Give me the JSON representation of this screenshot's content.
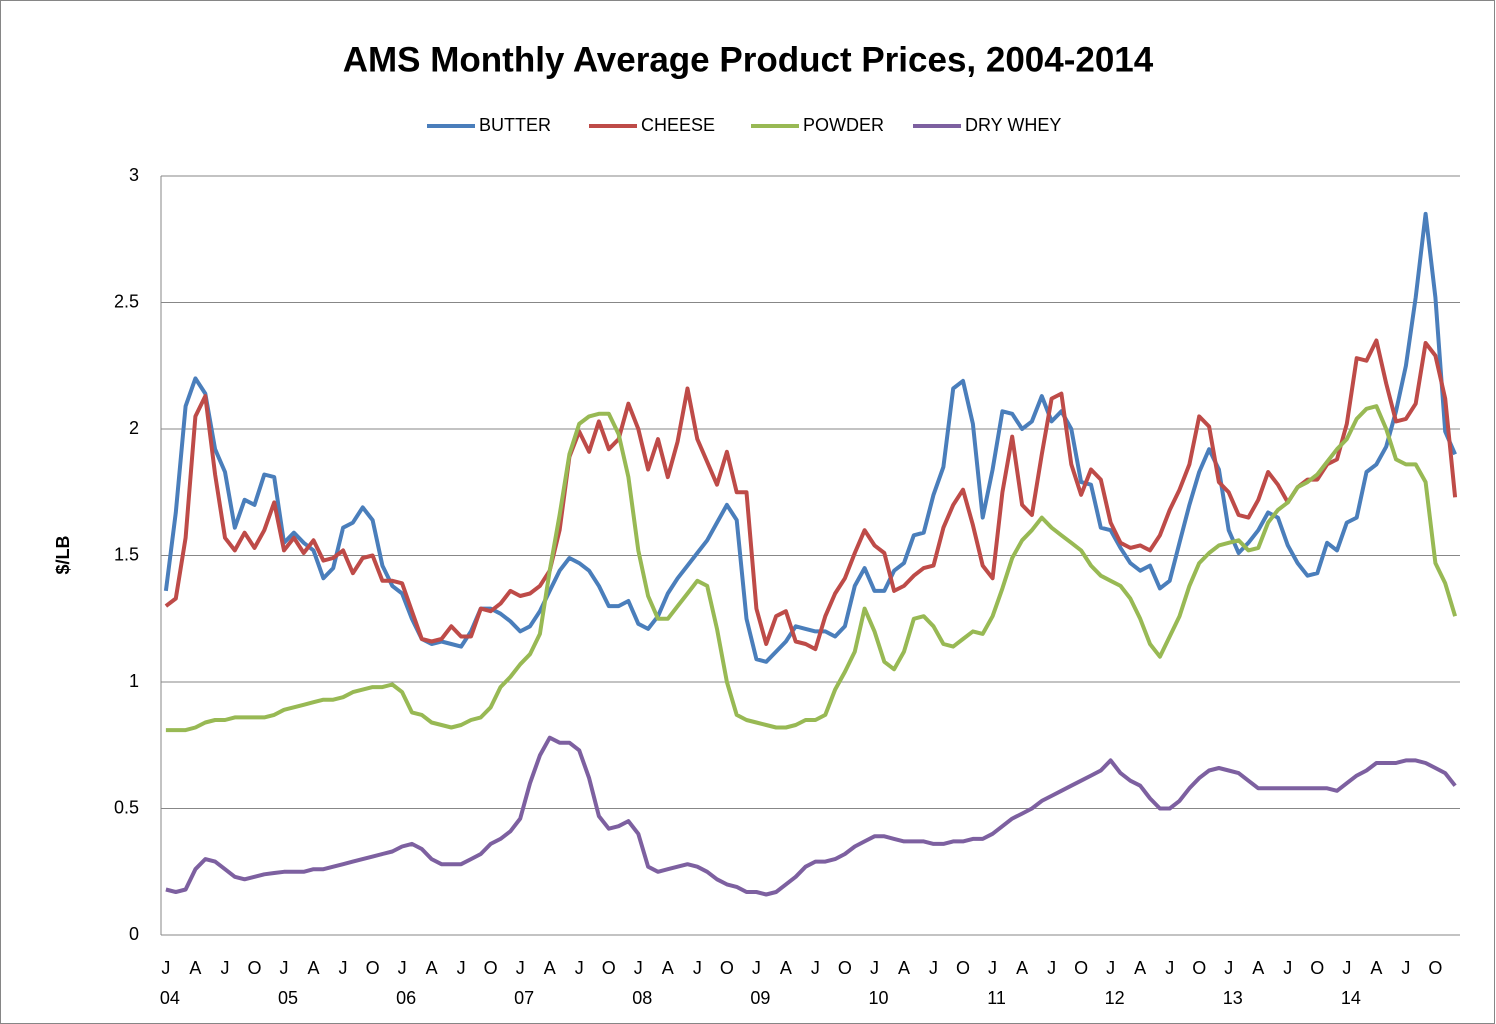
{
  "chart_data": {
    "type": "line",
    "title": "AMS Monthly Average Product Prices, 2004-2014",
    "y_label": "$/LB",
    "categories": [
      "J",
      null,
      null,
      "A",
      null,
      null,
      "J",
      null,
      null,
      "O",
      null,
      null,
      "J",
      null,
      null,
      "A",
      null,
      null,
      "J",
      null,
      null,
      "O",
      null,
      null,
      "J",
      null,
      null,
      "A",
      null,
      null,
      "J",
      null,
      null,
      "O",
      null,
      null,
      "J",
      null,
      null,
      "A",
      null,
      null,
      "J",
      null,
      null,
      "O",
      null,
      null,
      "J",
      null,
      null,
      "A",
      null,
      null,
      "J",
      null,
      null,
      "O",
      null,
      null,
      "J",
      null,
      null,
      "A",
      null,
      null,
      "J",
      null,
      null,
      "O",
      null,
      null,
      "J",
      null,
      null,
      "A",
      null,
      null,
      "J",
      null,
      null,
      "O",
      null,
      null,
      "J",
      null,
      null,
      "A",
      null,
      null,
      "J",
      null,
      null,
      "O",
      null,
      null,
      "J",
      null,
      null,
      "A",
      null,
      null,
      "J",
      null,
      null,
      "O",
      null,
      null,
      "J",
      null,
      null,
      "A",
      null,
      null,
      "J",
      null,
      null,
      "O",
      null,
      null,
      "J",
      null,
      null,
      "A",
      null,
      null,
      "J",
      null,
      null,
      "O",
      null,
      null
    ],
    "year_labels": [
      "04",
      "05",
      "06",
      "07",
      "08",
      "09",
      "10",
      "11",
      "12",
      "13",
      "14"
    ],
    "ylim": [
      0,
      3
    ],
    "yticks": [
      0,
      0.5,
      1,
      1.5,
      2,
      2.5,
      3
    ],
    "grid": true,
    "legend": "top",
    "series": [
      {
        "name": "BUTTER",
        "color": "#4a7ebb",
        "values": [
          1.36,
          1.67,
          2.09,
          2.2,
          2.14,
          1.92,
          1.83,
          1.61,
          1.72,
          1.7,
          1.82,
          1.81,
          1.55,
          1.59,
          1.55,
          1.52,
          1.41,
          1.45,
          1.61,
          1.63,
          1.69,
          1.64,
          1.46,
          1.38,
          1.35,
          1.25,
          1.17,
          1.15,
          1.16,
          1.15,
          1.14,
          1.2,
          1.29,
          1.29,
          1.27,
          1.24,
          1.2,
          1.22,
          1.28,
          1.36,
          1.44,
          1.49,
          1.47,
          1.44,
          1.38,
          1.3,
          1.3,
          1.32,
          1.23,
          1.21,
          1.26,
          1.35,
          1.41,
          1.46,
          1.51,
          1.56,
          1.63,
          1.7,
          1.64,
          1.25,
          1.09,
          1.08,
          1.12,
          1.16,
          1.22,
          1.21,
          1.2,
          1.2,
          1.18,
          1.22,
          1.38,
          1.45,
          1.36,
          1.36,
          1.44,
          1.47,
          1.58,
          1.59,
          1.74,
          1.85,
          2.16,
          2.19,
          2.02,
          1.65,
          1.84,
          2.07,
          2.06,
          2.0,
          2.03,
          2.13,
          2.03,
          2.07,
          2.0,
          1.79,
          1.78,
          1.61,
          1.6,
          1.53,
          1.47,
          1.44,
          1.46,
          1.37,
          1.4,
          1.55,
          1.7,
          1.83,
          1.92,
          1.84,
          1.6,
          1.51,
          1.55,
          1.6,
          1.67,
          1.65,
          1.54,
          1.47,
          1.42,
          1.43,
          1.55,
          1.52,
          1.63,
          1.65,
          1.83,
          1.86,
          1.93,
          2.07,
          2.25,
          2.52,
          2.85,
          2.52,
          1.99,
          1.9
        ]
      },
      {
        "name": "CHEESE",
        "color": "#be4b48",
        "values": [
          1.3,
          1.33,
          1.57,
          2.05,
          2.13,
          1.82,
          1.57,
          1.52,
          1.59,
          1.53,
          1.6,
          1.71,
          1.52,
          1.57,
          1.51,
          1.56,
          1.48,
          1.49,
          1.52,
          1.43,
          1.49,
          1.5,
          1.4,
          1.4,
          1.39,
          1.28,
          1.17,
          1.16,
          1.17,
          1.22,
          1.18,
          1.18,
          1.29,
          1.28,
          1.31,
          1.36,
          1.34,
          1.35,
          1.38,
          1.44,
          1.6,
          1.89,
          1.99,
          1.91,
          2.03,
          1.92,
          1.96,
          2.1,
          2.0,
          1.84,
          1.96,
          1.81,
          1.95,
          2.16,
          1.96,
          1.87,
          1.78,
          1.91,
          1.75,
          1.75,
          1.29,
          1.15,
          1.26,
          1.28,
          1.16,
          1.15,
          1.13,
          1.26,
          1.35,
          1.41,
          1.51,
          1.6,
          1.54,
          1.51,
          1.36,
          1.38,
          1.42,
          1.45,
          1.46,
          1.61,
          1.7,
          1.76,
          1.62,
          1.46,
          1.41,
          1.75,
          1.97,
          1.7,
          1.66,
          1.9,
          2.12,
          2.14,
          1.86,
          1.74,
          1.84,
          1.8,
          1.63,
          1.55,
          1.53,
          1.54,
          1.52,
          1.58,
          1.68,
          1.76,
          1.86,
          2.05,
          2.01,
          1.79,
          1.75,
          1.66,
          1.65,
          1.72,
          1.83,
          1.78,
          1.71,
          1.77,
          1.8,
          1.8,
          1.86,
          1.88,
          2.02,
          2.28,
          2.27,
          2.35,
          2.18,
          2.03,
          2.04,
          2.1,
          2.34,
          2.29,
          2.12,
          1.73
        ]
      },
      {
        "name": "POWDER",
        "color": "#98b954",
        "values": [
          0.81,
          0.81,
          0.81,
          0.82,
          0.84,
          0.85,
          0.85,
          0.86,
          0.86,
          0.86,
          0.86,
          0.87,
          0.89,
          0.9,
          0.91,
          0.92,
          0.93,
          0.93,
          0.94,
          0.96,
          0.97,
          0.98,
          0.98,
          0.99,
          0.96,
          0.88,
          0.87,
          0.84,
          0.83,
          0.82,
          0.83,
          0.85,
          0.86,
          0.9,
          0.98,
          1.02,
          1.07,
          1.11,
          1.19,
          1.44,
          1.66,
          1.9,
          2.02,
          2.05,
          2.06,
          2.06,
          1.98,
          1.81,
          1.52,
          1.34,
          1.25,
          1.25,
          1.3,
          1.35,
          1.4,
          1.38,
          1.21,
          1.0,
          0.87,
          0.85,
          0.84,
          0.83,
          0.82,
          0.82,
          0.83,
          0.85,
          0.85,
          0.87,
          0.97,
          1.04,
          1.12,
          1.29,
          1.2,
          1.08,
          1.05,
          1.12,
          1.25,
          1.26,
          1.22,
          1.15,
          1.14,
          1.17,
          1.2,
          1.19,
          1.26,
          1.37,
          1.49,
          1.56,
          1.6,
          1.65,
          1.61,
          1.58,
          1.55,
          1.52,
          1.46,
          1.42,
          1.4,
          1.38,
          1.33,
          1.25,
          1.15,
          1.1,
          1.18,
          1.26,
          1.38,
          1.47,
          1.51,
          1.54,
          1.55,
          1.56,
          1.52,
          1.53,
          1.63,
          1.68,
          1.71,
          1.77,
          1.79,
          1.82,
          1.87,
          1.92,
          1.96,
          2.04,
          2.08,
          2.09,
          2.0,
          1.88,
          1.86,
          1.86,
          1.79,
          1.47,
          1.39,
          1.26
        ]
      },
      {
        "name": "DRY WHEY",
        "color": "#7d60a0",
        "values": [
          0.18,
          0.17,
          0.18,
          0.26,
          0.3,
          0.29,
          0.26,
          0.23,
          0.22,
          0.23,
          0.24,
          0.245,
          0.25,
          0.25,
          0.25,
          0.26,
          0.26,
          0.27,
          0.28,
          0.29,
          0.3,
          0.31,
          0.32,
          0.33,
          0.35,
          0.36,
          0.34,
          0.3,
          0.28,
          0.28,
          0.28,
          0.3,
          0.32,
          0.36,
          0.38,
          0.41,
          0.46,
          0.6,
          0.71,
          0.78,
          0.76,
          0.76,
          0.73,
          0.62,
          0.47,
          0.42,
          0.43,
          0.45,
          0.4,
          0.27,
          0.25,
          0.26,
          0.27,
          0.28,
          0.27,
          0.25,
          0.22,
          0.2,
          0.19,
          0.17,
          0.17,
          0.16,
          0.17,
          0.2,
          0.23,
          0.27,
          0.29,
          0.29,
          0.3,
          0.32,
          0.35,
          0.37,
          0.39,
          0.39,
          0.38,
          0.37,
          0.37,
          0.37,
          0.36,
          0.36,
          0.37,
          0.37,
          0.38,
          0.38,
          0.4,
          0.43,
          0.46,
          0.48,
          0.5,
          0.53,
          0.55,
          0.57,
          0.59,
          0.61,
          0.63,
          0.65,
          0.69,
          0.64,
          0.61,
          0.59,
          0.54,
          0.5,
          0.5,
          0.53,
          0.58,
          0.62,
          0.65,
          0.66,
          0.65,
          0.64,
          0.61,
          0.58,
          0.58,
          0.58,
          0.58,
          0.58,
          0.58,
          0.58,
          0.58,
          0.57,
          0.6,
          0.63,
          0.65,
          0.68,
          0.68,
          0.68,
          0.69,
          0.69,
          0.68,
          0.66,
          0.64,
          0.59
        ]
      }
    ]
  }
}
